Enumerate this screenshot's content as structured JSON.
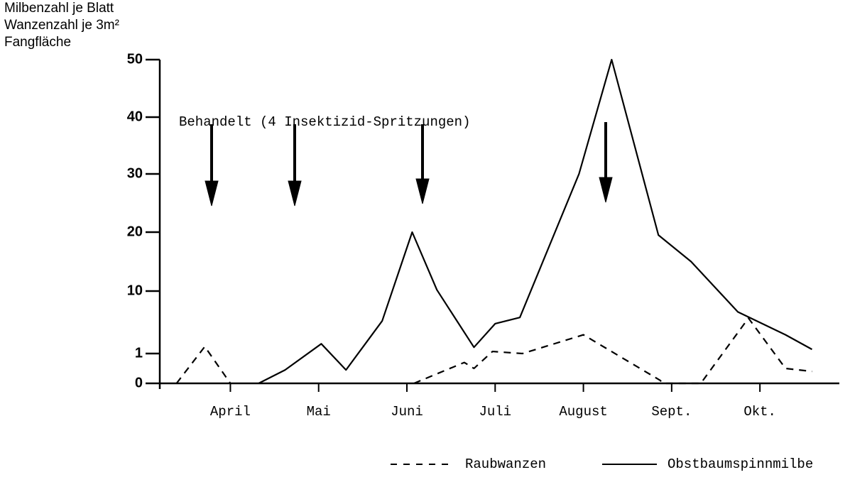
{
  "chart_data": {
    "type": "line",
    "y_label_lines": [
      "Milbenzahl je Blatt",
      "Wanzenzahl je 3m²",
      "Fangfläche"
    ],
    "annotation": "Behandelt (4 Insektizid-Spritzungen)",
    "xlim": [
      3.2,
      10.9
    ],
    "xticks": [
      {
        "value": 4,
        "label": "April"
      },
      {
        "value": 5,
        "label": "Mai"
      },
      {
        "value": 6,
        "label": "Juni"
      },
      {
        "value": 7,
        "label": "Juli"
      },
      {
        "value": 8,
        "label": "August"
      },
      {
        "value": 9,
        "label": "Sept."
      },
      {
        "value": 10,
        "label": "Okt."
      }
    ],
    "ylim": [
      0,
      50
    ],
    "yticks": [
      0,
      1,
      10,
      20,
      30,
      40,
      50
    ],
    "series": [
      {
        "name": "Raubwanzen",
        "color": "#000000",
        "line_style": "dashed",
        "x": [
          3.39,
          3.71,
          4.0,
          5.0,
          6.08,
          6.65,
          6.76,
          6.97,
          7.31,
          8.0,
          8.87,
          8.9,
          9.33,
          9.87,
          10.29,
          10.59
        ],
        "values": [
          0,
          2.0,
          0,
          null,
          0,
          0.7,
          0.5,
          1.3,
          1.0,
          3.7,
          0.1,
          0,
          0,
          6.1,
          0.5,
          0.4
        ]
      },
      {
        "name": "Obstbaumspinnmilbe",
        "color": "#000000",
        "line_style": "solid",
        "x": [
          4.32,
          4.62,
          5.03,
          5.31,
          5.72,
          6.06,
          6.34,
          6.76,
          7.0,
          7.28,
          7.95,
          8.32,
          8.85,
          9.22,
          9.75,
          10.29,
          10.59
        ],
        "values": [
          0,
          0.45,
          2.4,
          0.45,
          5.7,
          20,
          10.2,
          1.9,
          5.3,
          6.2,
          30,
          50,
          19.5,
          15,
          7,
          3.7,
          1.6
        ]
      }
    ]
  }
}
